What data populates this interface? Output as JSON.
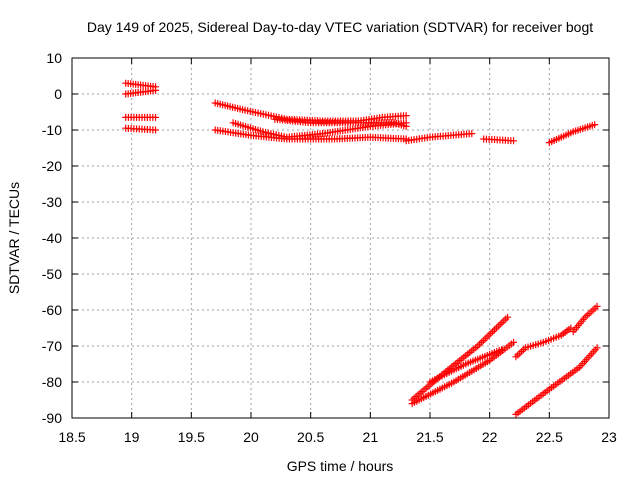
{
  "chart_data": {
    "type": "scatter",
    "title": "Day 149 of 2025, Sidereal Day-to-day VTEC variation (SDTVAR) for receiver bogt",
    "xlabel": "GPS time / hours",
    "ylabel": "SDTVAR / TECUs",
    "xlim": [
      18.5,
      23
    ],
    "ylim": [
      -90,
      10
    ],
    "xticks": [
      "18.5",
      "19",
      "19.5",
      "20",
      "20.5",
      "21",
      "21.5",
      "22",
      "22.5",
      "23"
    ],
    "yticks": [
      "10",
      "0",
      "-10",
      "-20",
      "-30",
      "-40",
      "-50",
      "-60",
      "-70",
      "-80",
      "-90"
    ],
    "grid": true,
    "marker": "+",
    "color": "#ff0000",
    "series": [
      {
        "name": "s1",
        "segments": [
          [
            [
              18.95,
              3
            ],
            [
              19.2,
              2
            ]
          ],
          [
            [
              18.95,
              0
            ],
            [
              19.2,
              1
            ]
          ]
        ]
      },
      {
        "name": "s2",
        "segments": [
          [
            [
              18.95,
              -6.5
            ],
            [
              19.2,
              -6.5
            ]
          ],
          [
            [
              18.95,
              -9.5
            ],
            [
              19.2,
              -10
            ]
          ]
        ]
      },
      {
        "name": "s3",
        "segments": [
          [
            [
              19.7,
              -2.5
            ],
            [
              19.95,
              -4.5
            ],
            [
              20.3,
              -7
            ],
            [
              20.6,
              -7.5
            ],
            [
              20.9,
              -7.5
            ],
            [
              21.1,
              -6.5
            ],
            [
              21.3,
              -6
            ]
          ]
        ]
      },
      {
        "name": "s4",
        "segments": [
          [
            [
              19.7,
              -10
            ],
            [
              20.0,
              -11.5
            ],
            [
              20.3,
              -12.5
            ],
            [
              20.7,
              -12.5
            ],
            [
              21.0,
              -12
            ],
            [
              21.3,
              -12.5
            ]
          ]
        ]
      },
      {
        "name": "s5",
        "segments": [
          [
            [
              19.85,
              -8
            ],
            [
              20.1,
              -10.5
            ],
            [
              20.3,
              -12
            ],
            [
              20.6,
              -11
            ],
            [
              21.0,
              -9
            ],
            [
              21.3,
              -8
            ]
          ]
        ]
      },
      {
        "name": "s6",
        "segments": [
          [
            [
              20.2,
              -7
            ],
            [
              20.5,
              -8
            ],
            [
              20.9,
              -8
            ],
            [
              21.2,
              -8
            ],
            [
              21.3,
              -9
            ]
          ]
        ]
      },
      {
        "name": "s7",
        "segments": [
          [
            [
              21.3,
              -13
            ],
            [
              21.5,
              -12
            ],
            [
              21.85,
              -11
            ]
          ],
          [
            [
              21.95,
              -12.5
            ],
            [
              22.2,
              -13
            ]
          ]
        ]
      },
      {
        "name": "s8",
        "segments": [
          [
            [
              22.5,
              -13.5
            ],
            [
              22.6,
              -12
            ],
            [
              22.7,
              -10.5
            ],
            [
              22.88,
              -8.5
            ]
          ]
        ]
      },
      {
        "name": "s9",
        "segments": [
          [
            [
              21.35,
              -85
            ],
            [
              21.6,
              -78
            ],
            [
              21.9,
              -70
            ],
            [
              22.15,
              -62
            ]
          ]
        ]
      },
      {
        "name": "s10",
        "segments": [
          [
            [
              21.35,
              -86
            ],
            [
              21.7,
              -80
            ],
            [
              22.0,
              -74
            ],
            [
              22.2,
              -69
            ]
          ]
        ]
      },
      {
        "name": "s11",
        "segments": [
          [
            [
              21.5,
              -80
            ],
            [
              21.8,
              -75
            ],
            [
              22.1,
              -71
            ]
          ]
        ]
      },
      {
        "name": "s12",
        "segments": [
          [
            [
              22.22,
              -73
            ],
            [
              22.3,
              -70.5
            ],
            [
              22.45,
              -69
            ],
            [
              22.6,
              -67
            ],
            [
              22.68,
              -65
            ]
          ]
        ]
      },
      {
        "name": "s13",
        "segments": [
          [
            [
              22.7,
              -66
            ],
            [
              22.8,
              -62
            ],
            [
              22.9,
              -59
            ]
          ]
        ]
      },
      {
        "name": "s14",
        "segments": [
          [
            [
              22.22,
              -89
            ],
            [
              22.5,
              -82
            ],
            [
              22.75,
              -76
            ],
            [
              22.9,
              -70.5
            ]
          ]
        ]
      }
    ]
  }
}
